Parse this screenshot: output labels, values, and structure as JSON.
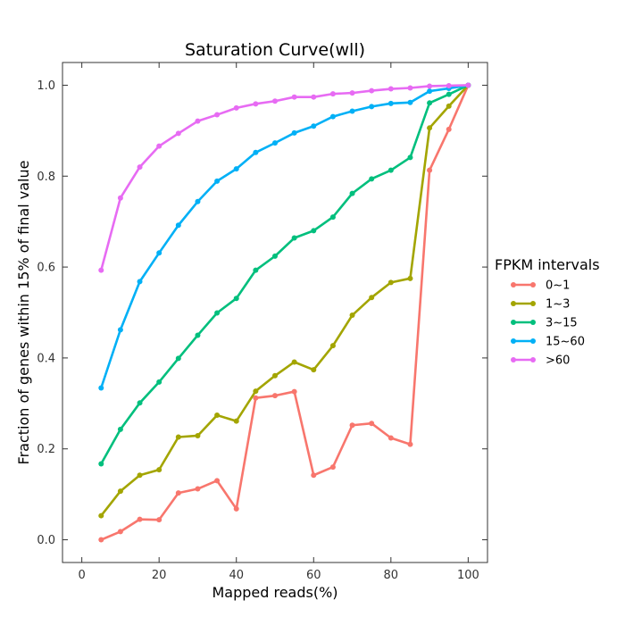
{
  "chart_data": {
    "type": "line",
    "title": "Saturation Curve(wll)",
    "xlabel": "Mapped reads(%)",
    "ylabel": "Fraction of genes within 15% of final value",
    "xlim": [
      -5,
      105
    ],
    "ylim": [
      -0.05,
      1.05
    ],
    "xticks": [
      0,
      20,
      40,
      60,
      80,
      100
    ],
    "xtick_labels": [
      "0",
      "20",
      "40",
      "60",
      "80",
      "100"
    ],
    "yticks": [
      0.0,
      0.2,
      0.4,
      0.6,
      0.8,
      1.0
    ],
    "ytick_labels": [
      "0.0",
      "0.2",
      "0.4",
      "0.6",
      "0.8",
      "1.0"
    ],
    "grid": false,
    "legend": {
      "title": "FPKM intervals",
      "placement": "right-outside"
    },
    "x": [
      5,
      10,
      15,
      20,
      25,
      30,
      35,
      40,
      45,
      50,
      55,
      60,
      65,
      70,
      75,
      80,
      85,
      90,
      95,
      100
    ],
    "series": [
      {
        "name": "0~1",
        "color": "#f8766d",
        "values": [
          0.0,
          0.018,
          0.045,
          0.044,
          0.103,
          0.112,
          0.13,
          0.068,
          0.312,
          0.317,
          0.326,
          0.142,
          0.16,
          0.252,
          0.256,
          0.224,
          0.21,
          0.813,
          0.903,
          1.0
        ]
      },
      {
        "name": "1~3",
        "color": "#a3a500",
        "values": [
          0.053,
          0.107,
          0.142,
          0.154,
          0.226,
          0.229,
          0.274,
          0.261,
          0.327,
          0.361,
          0.391,
          0.374,
          0.427,
          0.494,
          0.533,
          0.566,
          0.575,
          0.906,
          0.954,
          1.0
        ]
      },
      {
        "name": "3~15",
        "color": "#00bf7d",
        "values": [
          0.167,
          0.243,
          0.301,
          0.347,
          0.399,
          0.45,
          0.499,
          0.531,
          0.593,
          0.624,
          0.664,
          0.68,
          0.71,
          0.762,
          0.794,
          0.813,
          0.841,
          0.961,
          0.98,
          1.0
        ]
      },
      {
        "name": "15~60",
        "color": "#00b0f6",
        "values": [
          0.334,
          0.462,
          0.568,
          0.631,
          0.692,
          0.744,
          0.789,
          0.816,
          0.852,
          0.873,
          0.895,
          0.91,
          0.931,
          0.943,
          0.953,
          0.96,
          0.962,
          0.987,
          0.993,
          1.0
        ]
      },
      {
        "name": ">60",
        "color": "#e76bf3",
        "values": [
          0.593,
          0.752,
          0.82,
          0.866,
          0.894,
          0.921,
          0.935,
          0.95,
          0.959,
          0.965,
          0.974,
          0.974,
          0.981,
          0.983,
          0.988,
          0.992,
          0.994,
          0.998,
          0.999,
          1.0
        ]
      }
    ]
  }
}
